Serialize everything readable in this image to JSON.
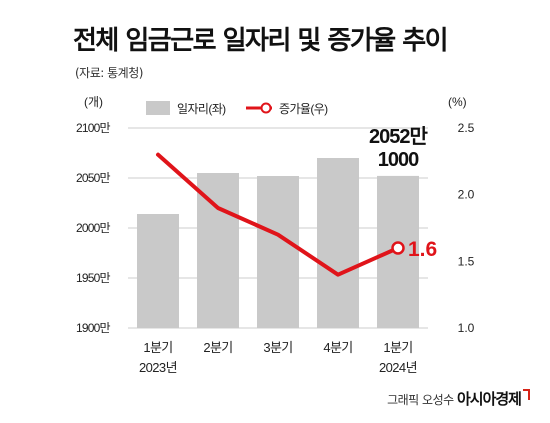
{
  "title": "전체 임금근로 일자리 및 증가율 추이",
  "source": "(자료: 통계청)",
  "credit": {
    "text": "그래픽 오성수",
    "brand": "아시아경제"
  },
  "colors": {
    "bar": "#c9c9c9",
    "line": "#e0141a",
    "grid": "#cccccc",
    "text": "#222222"
  },
  "chart_data": {
    "type": "bar",
    "categories": [
      {
        "quarter": "1분기",
        "year": "2023년"
      },
      {
        "quarter": "2분기",
        "year": ""
      },
      {
        "quarter": "3분기",
        "year": ""
      },
      {
        "quarter": "4분기",
        "year": ""
      },
      {
        "quarter": "1분기",
        "year": "2024년"
      }
    ],
    "series": [
      {
        "name": "일자리(좌)",
        "type": "bar",
        "axis": "left",
        "values": [
          2014,
          2055,
          2052,
          2070,
          2052.1
        ]
      },
      {
        "name": "증가율(우)",
        "type": "line",
        "axis": "right",
        "values": [
          2.3,
          1.9,
          1.7,
          1.4,
          1.6
        ]
      }
    ],
    "left_axis": {
      "unit": "(개)",
      "ylim": [
        1900,
        2100
      ],
      "ticks": [
        1900,
        1950,
        2000,
        2050,
        2100
      ],
      "tick_suffix": "만"
    },
    "right_axis": {
      "unit": "(%)",
      "ylim": [
        1.0,
        2.5
      ],
      "ticks": [
        1.0,
        1.5,
        2.0,
        2.5
      ]
    },
    "annotations": [
      {
        "target": "bar",
        "index": 4,
        "lines": [
          "2052만",
          "1000"
        ]
      },
      {
        "target": "line",
        "index": 4,
        "text": "1.6"
      }
    ],
    "legend": "top-center",
    "grid": true
  }
}
